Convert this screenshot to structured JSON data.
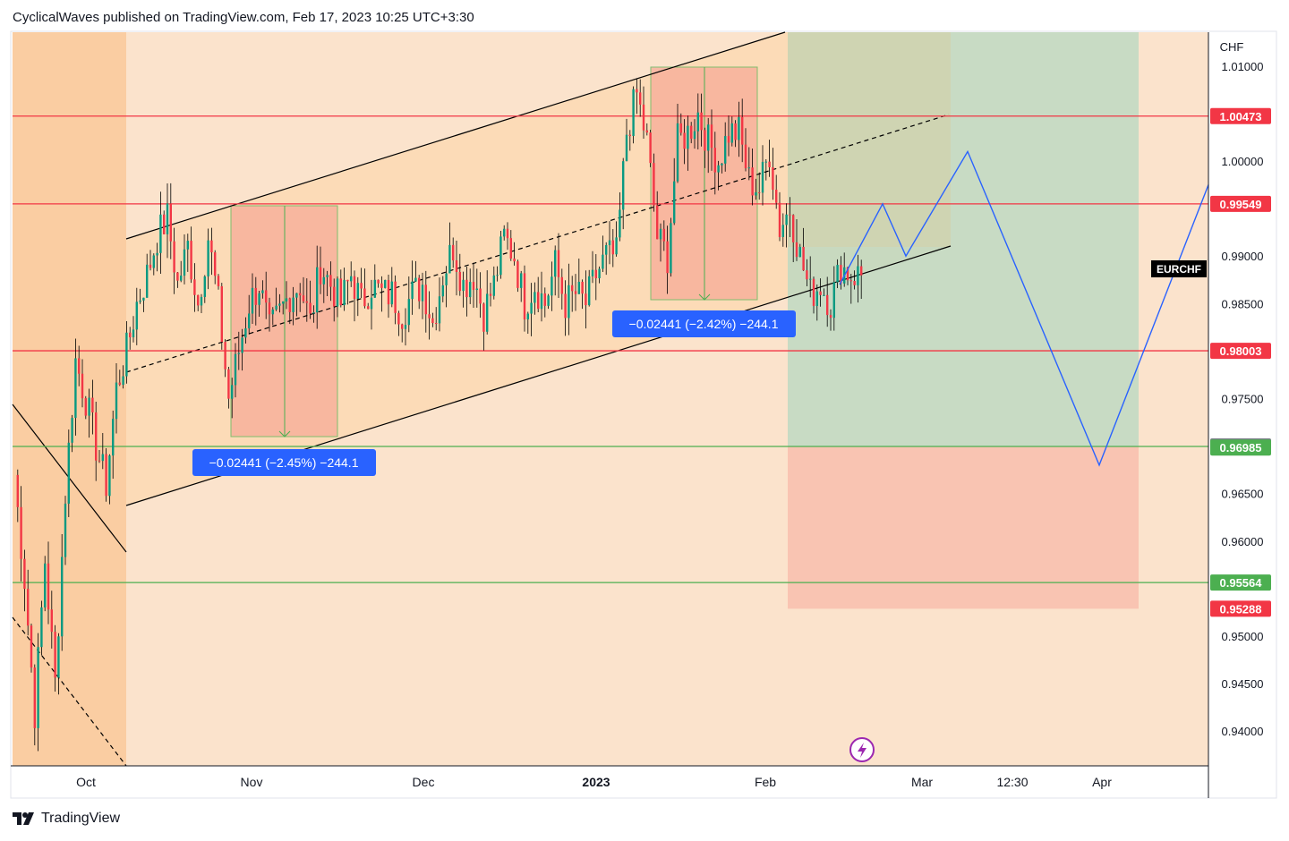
{
  "header": {
    "text": "CyclicalWaves published on TradingView.com, Feb 17, 2023 10:25 UTC+3:30"
  },
  "footer": {
    "brand": "TradingView",
    "icon": "tradingview-logo-icon"
  },
  "chart_data": {
    "type": "candlestick",
    "symbol": "EURCHF",
    "currency_label": "CHF",
    "y_ticks": [
      "1.01000",
      "1.00000",
      "0.99000",
      "0.98500",
      "0.97500",
      "0.96500",
      "0.96000",
      "0.95000",
      "0.94500",
      "0.94000"
    ],
    "ylim": [
      0.9355,
      1.0125
    ],
    "x_ticks": [
      "Oct",
      "Nov",
      "Dec",
      "2023",
      "Feb",
      "Mar",
      "12:30",
      "Apr"
    ],
    "horizontal_levels": [
      {
        "label": "1.00473",
        "value": 1.00473,
        "color": "#f23645"
      },
      {
        "label": "0.99549",
        "value": 0.99549,
        "color": "#f23645"
      },
      {
        "label": "0.98003",
        "value": 0.98003,
        "color": "#f23645"
      },
      {
        "label": "0.96996",
        "value": 0.96996,
        "color": "#4caf50"
      },
      {
        "label": "0.95564",
        "value": 0.95564,
        "color": "#4caf50"
      }
    ],
    "price_labels": [
      {
        "label": "1.00473",
        "value": 1.00473,
        "bg": "#f23645"
      },
      {
        "label": "0.99549",
        "value": 0.99549,
        "bg": "#f23645"
      },
      {
        "label": "0.98003",
        "value": 0.98003,
        "bg": "#f23645"
      },
      {
        "label": "0.96996",
        "value": 0.96996,
        "bg": "#787b86"
      },
      {
        "label": "0.96985",
        "value": 0.96985,
        "bg": "#4caf50"
      },
      {
        "label": "0.95564",
        "value": 0.95564,
        "bg": "#4caf50"
      },
      {
        "label": "0.95288",
        "value": 0.95288,
        "bg": "#f23645"
      }
    ],
    "measure_labels": [
      {
        "text": "−0.02441 (−2.45%) −244.1"
      },
      {
        "text": "−0.02441 (−2.42%) −244.1"
      }
    ],
    "position_tool": {
      "entry": 0.96996,
      "target": 0.99549,
      "stop": 0.95288
    },
    "projection_path_prices": [
      0.987,
      0.9955,
      0.99,
      1.001,
      0.968,
      0.9975
    ],
    "colors": {
      "up": "#089981",
      "down": "#f23645",
      "projection": "#2962ff",
      "channel": "#000000"
    }
  }
}
